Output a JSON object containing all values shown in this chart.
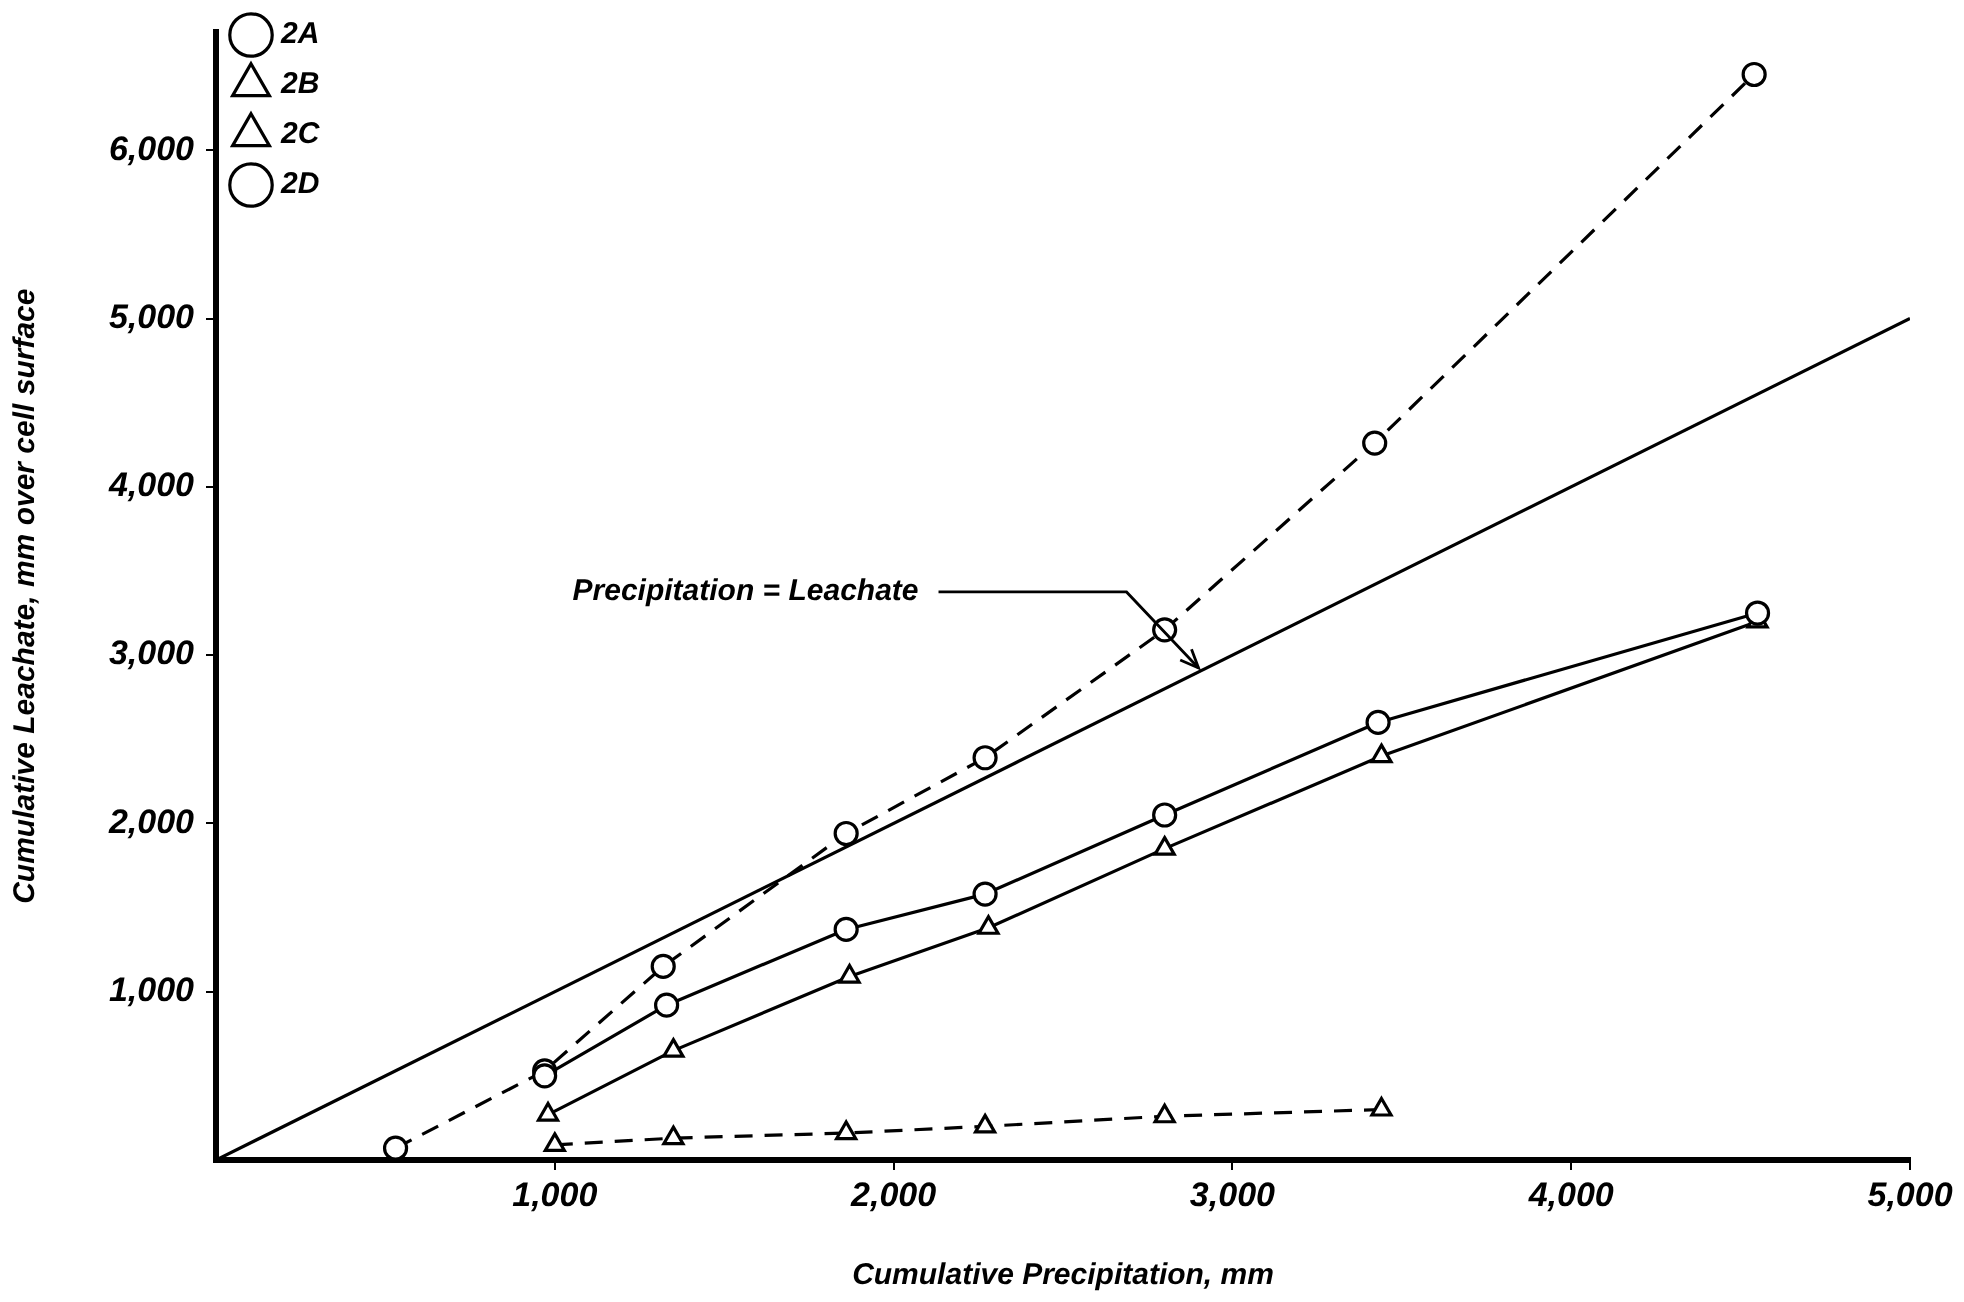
{
  "chart_data": {
    "type": "line",
    "xlabel": "Cumulative Precipitation, mm",
    "ylabel": "Cumulative Leachate, mm over cell surface",
    "xlim": [
      0,
      5000
    ],
    "ylim": [
      0,
      6700
    ],
    "xticks": [
      {
        "value": 1000,
        "label": "1,000"
      },
      {
        "value": 2000,
        "label": "2,000"
      },
      {
        "value": 3000,
        "label": "3,000"
      },
      {
        "value": 4000,
        "label": "4,000"
      },
      {
        "value": 5000,
        "label": "5,000"
      }
    ],
    "yticks": [
      {
        "value": 1000,
        "label": "1,000"
      },
      {
        "value": 2000,
        "label": "2,000"
      },
      {
        "value": 3000,
        "label": "3,000"
      },
      {
        "value": 4000,
        "label": "4,000"
      },
      {
        "value": 5000,
        "label": "5,000"
      },
      {
        "value": 6000,
        "label": "6,000"
      }
    ],
    "grid": false,
    "legend": "top left",
    "series": [
      {
        "name": "2A",
        "color": "#000000",
        "marker": "circle",
        "line_style": "solid",
        "x": [
          970,
          1330,
          1860,
          2270,
          2800,
          3430,
          4550
        ],
        "values": [
          500,
          920,
          1370,
          1580,
          2050,
          2600,
          3250
        ]
      },
      {
        "name": "2B",
        "color": "#000000",
        "marker": "triangle",
        "line_style": "solid",
        "x": [
          980,
          1350,
          1870,
          2280,
          2800,
          3440,
          4550
        ],
        "values": [
          270,
          650,
          1090,
          1380,
          1850,
          2400,
          3200
        ]
      },
      {
        "name": "2C",
        "color": "#000000",
        "marker": "triangle",
        "line_style": "dashed",
        "x": [
          1000,
          1350,
          1860,
          2270,
          2800,
          3440
        ],
        "values": [
          90,
          130,
          160,
          200,
          260,
          300
        ]
      },
      {
        "name": "2D",
        "color": "#000000",
        "marker": "circle",
        "line_style": "dashed",
        "x": [
          530,
          970,
          1320,
          1860,
          2270,
          2800,
          3420,
          4540
        ],
        "values": [
          70,
          530,
          1150,
          1940,
          2390,
          3150,
          4260,
          6450
        ]
      },
      {
        "color": "#000000",
        "marker": "none",
        "line_style": "solid",
        "x": [
          0,
          5000
        ],
        "values": [
          0,
          5000
        ]
      }
    ],
    "annotations": [
      {
        "text": "Precipitation = Leachate",
        "x": 2900,
        "y": 2900
      }
    ]
  }
}
